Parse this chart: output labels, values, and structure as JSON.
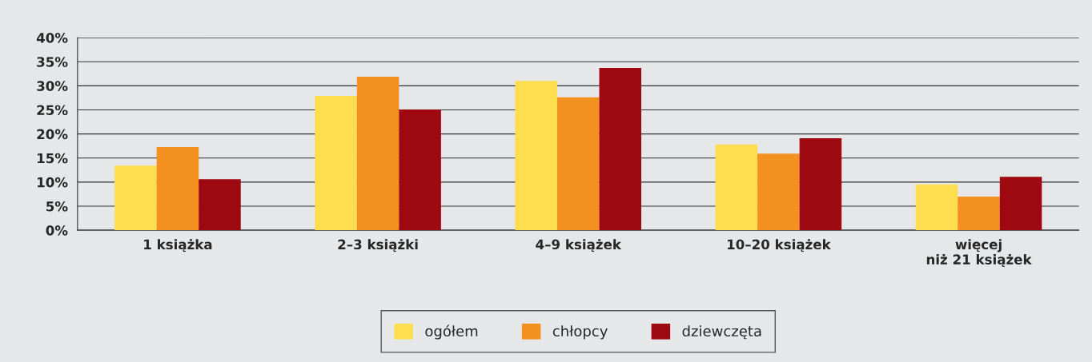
{
  "chart_data": {
    "type": "bar",
    "categories": [
      "1 książka",
      "2–3 książki",
      "4–9 książek",
      "10–20 książek",
      "więcej\nniż 21 książek"
    ],
    "series": [
      {
        "name": "ogółem",
        "color": "#fedd4f",
        "values": [
          13.4,
          27.9,
          31.0,
          17.8,
          9.5
        ]
      },
      {
        "name": "chłopcy",
        "color": "#f3901f",
        "values": [
          17.3,
          31.9,
          27.6,
          15.9,
          7.0
        ]
      },
      {
        "name": "dziewczęta",
        "color": "#9e0810",
        "values": [
          10.6,
          25.1,
          33.7,
          19.1,
          11.1
        ]
      }
    ],
    "ylim": [
      0,
      40
    ],
    "yticks": [
      {
        "value": 0,
        "label": "0%"
      },
      {
        "value": 5,
        "label": "5%"
      },
      {
        "value": 10,
        "label": "10%"
      },
      {
        "value": 15,
        "label": "15%"
      },
      {
        "value": 20,
        "label": "20%"
      },
      {
        "value": 25,
        "label": "25%"
      },
      {
        "value": 30,
        "label": "30%"
      },
      {
        "value": 35,
        "label": "35%"
      },
      {
        "value": 40,
        "label": "40%"
      }
    ],
    "grid": "y",
    "legend": "bottom"
  }
}
